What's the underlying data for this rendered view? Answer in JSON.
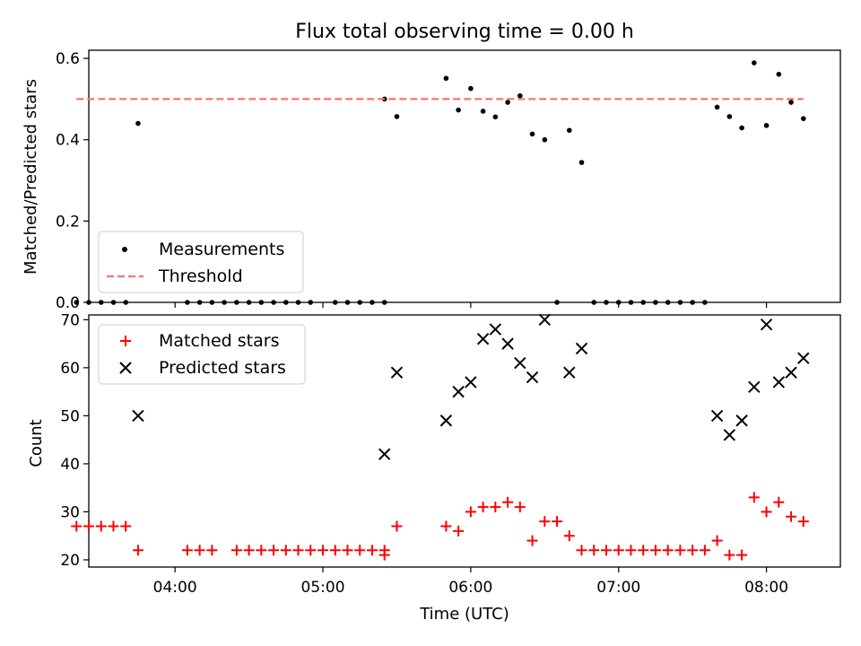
{
  "chart_data": [
    {
      "type": "scatter",
      "title": "Flux total observing time = 0.00 h",
      "xlabel": "",
      "ylabel": "Matched/Predicted stars",
      "xlim": [
        "03:25",
        "08:30"
      ],
      "ylim": [
        0,
        0.62
      ],
      "yticks": [
        0.0,
        0.2,
        0.4,
        0.6
      ],
      "ytick_labels": [
        "0.0",
        "0.2",
        "0.4",
        "0.6"
      ],
      "legend": {
        "placement": "lower-left"
      },
      "series": [
        {
          "name": "Measurements",
          "kind": "scatter",
          "marker": "dot",
          "color": "#000000",
          "points": [
            [
              "03:20",
              0.0
            ],
            [
              "03:25",
              0.0
            ],
            [
              "03:30",
              0.0
            ],
            [
              "03:35",
              0.0
            ],
            [
              "03:40",
              0.0
            ],
            [
              "03:45",
              0.44
            ],
            [
              "04:05",
              0.0
            ],
            [
              "04:10",
              0.0
            ],
            [
              "04:15",
              0.0
            ],
            [
              "04:20",
              0.0
            ],
            [
              "04:25",
              0.0
            ],
            [
              "04:30",
              0.0
            ],
            [
              "04:35",
              0.0
            ],
            [
              "04:40",
              0.0
            ],
            [
              "04:45",
              0.0
            ],
            [
              "04:50",
              0.0
            ],
            [
              "04:55",
              0.0
            ],
            [
              "05:05",
              0.0
            ],
            [
              "05:10",
              0.0
            ],
            [
              "05:15",
              0.0
            ],
            [
              "05:20",
              0.0
            ],
            [
              "05:25",
              0.0
            ],
            [
              "05:25",
              0.5
            ],
            [
              "05:30",
              0.457
            ],
            [
              "05:50",
              0.551
            ],
            [
              "05:55",
              0.473
            ],
            [
              "06:00",
              0.526
            ],
            [
              "06:05",
              0.47
            ],
            [
              "06:10",
              0.456
            ],
            [
              "06:15",
              0.492
            ],
            [
              "06:20",
              0.508
            ],
            [
              "06:25",
              0.414
            ],
            [
              "06:30",
              0.4
            ],
            [
              "06:35",
              0.0
            ],
            [
              "06:40",
              0.423
            ],
            [
              "06:45",
              0.344
            ],
            [
              "06:50",
              0.0
            ],
            [
              "06:55",
              0.0
            ],
            [
              "07:00",
              0.0
            ],
            [
              "07:05",
              0.0
            ],
            [
              "07:10",
              0.0
            ],
            [
              "07:15",
              0.0
            ],
            [
              "07:20",
              0.0
            ],
            [
              "07:25",
              0.0
            ],
            [
              "07:30",
              0.0
            ],
            [
              "07:35",
              0.0
            ],
            [
              "07:40",
              0.48
            ],
            [
              "07:45",
              0.457
            ],
            [
              "07:50",
              0.429
            ],
            [
              "07:55",
              0.589
            ],
            [
              "08:00",
              0.435
            ],
            [
              "08:05",
              0.561
            ],
            [
              "08:10",
              0.492
            ],
            [
              "08:15",
              0.452
            ]
          ]
        },
        {
          "name": "Threshold",
          "kind": "line",
          "dash": "dashed",
          "color": "#ff7070",
          "points": [
            [
              "03:20",
              0.5
            ],
            [
              "08:15",
              0.5
            ]
          ]
        }
      ]
    },
    {
      "type": "scatter",
      "title": "",
      "xlabel": "Time (UTC)",
      "ylabel": "Count",
      "xlim": [
        "03:25",
        "08:30"
      ],
      "ylim": [
        18.5,
        71
      ],
      "yticks": [
        20,
        30,
        40,
        50,
        60,
        70
      ],
      "ytick_labels": [
        "20",
        "30",
        "40",
        "50",
        "60",
        "70"
      ],
      "xticks": [
        "04:00",
        "05:00",
        "06:00",
        "07:00",
        "08:00"
      ],
      "xtick_labels": [
        "04:00",
        "05:00",
        "06:00",
        "07:00",
        "08:00"
      ],
      "legend": {
        "placement": "upper-left"
      },
      "series": [
        {
          "name": "Matched stars",
          "kind": "scatter",
          "marker": "plus",
          "color": "#ff0000",
          "points": [
            [
              "03:20",
              27
            ],
            [
              "03:25",
              27
            ],
            [
              "03:30",
              27
            ],
            [
              "03:35",
              27
            ],
            [
              "03:40",
              27
            ],
            [
              "03:45",
              22
            ],
            [
              "04:05",
              22
            ],
            [
              "04:10",
              22
            ],
            [
              "04:15",
              22
            ],
            [
              "04:25",
              22
            ],
            [
              "04:30",
              22
            ],
            [
              "04:35",
              22
            ],
            [
              "04:40",
              22
            ],
            [
              "04:45",
              22
            ],
            [
              "04:50",
              22
            ],
            [
              "04:55",
              22
            ],
            [
              "05:00",
              22
            ],
            [
              "05:05",
              22
            ],
            [
              "05:10",
              22
            ],
            [
              "05:15",
              22
            ],
            [
              "05:20",
              22
            ],
            [
              "05:25",
              22
            ],
            [
              "05:25",
              21
            ],
            [
              "05:30",
              27
            ],
            [
              "05:50",
              27
            ],
            [
              "05:55",
              26
            ],
            [
              "06:00",
              30
            ],
            [
              "06:05",
              31
            ],
            [
              "06:10",
              31
            ],
            [
              "06:15",
              32
            ],
            [
              "06:20",
              31
            ],
            [
              "06:25",
              24
            ],
            [
              "06:30",
              28
            ],
            [
              "06:35",
              28
            ],
            [
              "06:40",
              25
            ],
            [
              "06:45",
              22
            ],
            [
              "06:50",
              22
            ],
            [
              "06:55",
              22
            ],
            [
              "07:00",
              22
            ],
            [
              "07:05",
              22
            ],
            [
              "07:10",
              22
            ],
            [
              "07:15",
              22
            ],
            [
              "07:20",
              22
            ],
            [
              "07:25",
              22
            ],
            [
              "07:30",
              22
            ],
            [
              "07:35",
              22
            ],
            [
              "07:40",
              24
            ],
            [
              "07:45",
              21
            ],
            [
              "07:50",
              21
            ],
            [
              "07:55",
              33
            ],
            [
              "08:00",
              30
            ],
            [
              "08:05",
              32
            ],
            [
              "08:10",
              29
            ],
            [
              "08:15",
              28
            ]
          ]
        },
        {
          "name": "Predicted stars",
          "kind": "scatter",
          "marker": "x",
          "color": "#000000",
          "points": [
            [
              "03:45",
              50
            ],
            [
              "05:25",
              42
            ],
            [
              "05:30",
              59
            ],
            [
              "05:50",
              49
            ],
            [
              "05:55",
              55
            ],
            [
              "06:00",
              57
            ],
            [
              "06:05",
              66
            ],
            [
              "06:10",
              68
            ],
            [
              "06:15",
              65
            ],
            [
              "06:20",
              61
            ],
            [
              "06:25",
              58
            ],
            [
              "06:30",
              70
            ],
            [
              "06:40",
              59
            ],
            [
              "06:45",
              64
            ],
            [
              "07:40",
              50
            ],
            [
              "07:45",
              46
            ],
            [
              "07:50",
              49
            ],
            [
              "07:55",
              56
            ],
            [
              "08:00",
              69
            ],
            [
              "08:05",
              57
            ],
            [
              "08:10",
              59
            ],
            [
              "08:15",
              62
            ]
          ]
        }
      ]
    }
  ]
}
